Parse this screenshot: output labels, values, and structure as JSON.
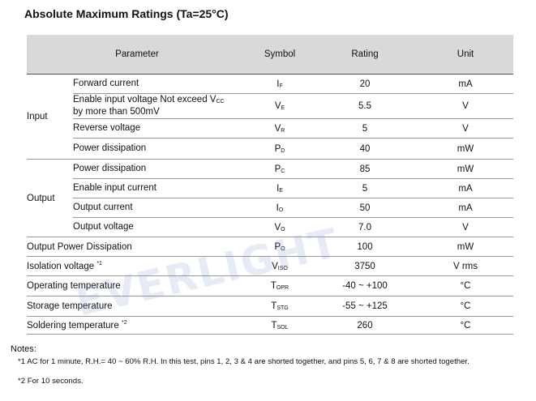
{
  "title": "Absolute Maximum Ratings (Ta=25°C)",
  "headers": {
    "parameter": "Parameter",
    "symbol": "Symbol",
    "rating": "Rating",
    "unit": "Unit"
  },
  "groups": {
    "input": "Input",
    "output": "Output"
  },
  "rows": [
    {
      "param": "Forward current",
      "sym": "I",
      "sub": "F",
      "rating": "20",
      "unit": "mA"
    },
    {
      "param1": "Enable input voltage Not exceed V",
      "param1sub": "CC",
      "param2": "by more than 500mV",
      "sym": "V",
      "sub": "E",
      "rating": "5.5",
      "unit": "V"
    },
    {
      "param": "Reverse voltage",
      "sym": "V",
      "sub": "R",
      "rating": "5",
      "unit": "V"
    },
    {
      "param": "Power dissipation",
      "sym": "P",
      "sub": "D",
      "rating": "40",
      "unit": "mW"
    },
    {
      "param": "Power dissipation",
      "sym": "P",
      "sub": "C",
      "rating": "85",
      "unit": "mW"
    },
    {
      "param": "Enable input current",
      "sym": "I",
      "sub": "E",
      "rating": "5",
      "unit": "mA"
    },
    {
      "param": "Output current",
      "sym": "I",
      "sub": "O",
      "rating": "50",
      "unit": "mA"
    },
    {
      "param": "Output voltage",
      "sym": "V",
      "sub": "O",
      "rating": "7.0",
      "unit": "V"
    },
    {
      "param": "Output Power Dissipation",
      "sym": "P",
      "sub": "O",
      "rating": "100",
      "unit": "mW"
    },
    {
      "param": "Isolation voltage",
      "sup": "*1",
      "sym": "V",
      "sub": "ISO",
      "rating": "3750",
      "unit": "V rms"
    },
    {
      "param": "Operating temperature",
      "sym": "T",
      "sub": "OPR",
      "rating": "-40 ~ +100",
      "unit": "°C"
    },
    {
      "param": "Storage temperature",
      "sym": "T",
      "sub": "STG",
      "rating": "-55 ~ +125",
      "unit": "°C"
    },
    {
      "param": "Soldering temperature",
      "sup": "*2",
      "sym": "T",
      "sub": "SOL",
      "rating": "260",
      "unit": "°C"
    }
  ],
  "notes": {
    "label": "Notes:",
    "n1": "*1  AC for 1 minute, R.H.= 40 ~ 60% R.H. In this test, pins 1, 2, 3 & 4 are shorted together, and pins 5, 6, 7 & 8 are shorted together.",
    "n2": "*2  For 10 seconds."
  },
  "watermark": "EVERLIGHT"
}
